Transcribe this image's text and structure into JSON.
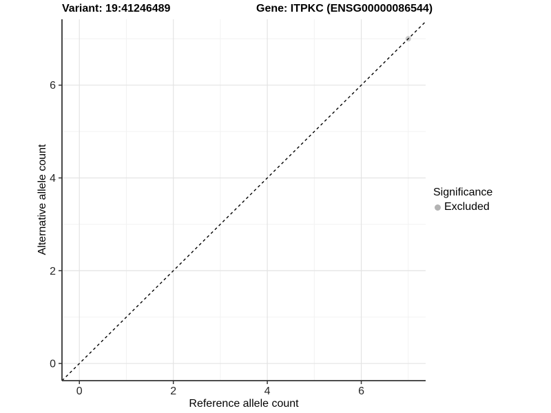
{
  "figure": {
    "variant_title": "Variant: 19:41246489",
    "gene_title": "Gene: ITPKC (ENSG00000086544)"
  },
  "chart_data": {
    "type": "scatter",
    "title": "Variant: 19:41246489  Gene: ITPKC (ENSG00000086544)",
    "xlabel": "Reference allele count",
    "ylabel": "Alternative allele count",
    "xlim": [
      -0.37,
      7.37
    ],
    "ylim": [
      -0.37,
      7.42
    ],
    "x_major_ticks": [
      0,
      2,
      4,
      6
    ],
    "y_major_ticks": [
      0,
      2,
      4,
      6
    ],
    "x_minor_ticks": [
      1,
      3,
      5,
      7
    ],
    "y_minor_ticks": [
      1,
      3,
      5,
      7
    ],
    "grid": true,
    "points": [
      {
        "x": 7,
        "y": 7,
        "series": "Excluded"
      }
    ],
    "identity_line": {
      "slope": 1,
      "intercept": 0,
      "style": "dashed"
    },
    "legend": {
      "title": "Significance",
      "position": "right",
      "items": [
        {
          "label": "Excluded",
          "color": "#b3b3b3"
        }
      ]
    }
  },
  "colors": {
    "background": "#ffffff",
    "axis_line": "#333333",
    "tick_mark": "#333333",
    "tick_label": "#262626",
    "major_grid": "#e3e3e3",
    "minor_grid": "#f2f2f2",
    "point_fill": "#c3c3c3",
    "identity_line": "#000000"
  }
}
